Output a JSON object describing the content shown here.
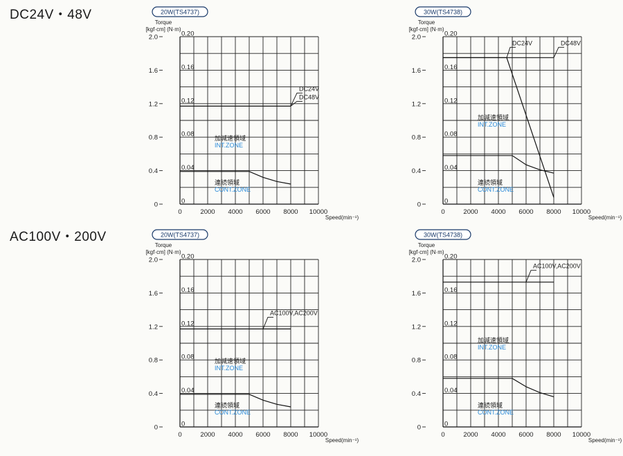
{
  "sections": [
    {
      "title": "DC24V・48V"
    },
    {
      "title": "AC100V・200V"
    }
  ],
  "chart_data": [
    {
      "type": "line",
      "badge": "20W(TS4737)",
      "ylabel": "Torque",
      "ylabel_units": "[kgf·cm] (N·m)",
      "xlabel": "Speed(min⁻¹)",
      "x_ticks": [
        "0",
        "2000",
        "4000",
        "6000",
        "8000",
        "10000"
      ],
      "y_ticks_kgfcm": [
        "0",
        "0.4",
        "0.8",
        "1.2",
        "1.6",
        "2.0"
      ],
      "y_ticks_nm": [
        "0",
        "0.04",
        "0.08",
        "0.12",
        "0.16",
        "0.20"
      ],
      "xlim": [
        0,
        10000
      ],
      "ylim": [
        0,
        0.2
      ],
      "series": [
        {
          "x": [
            0,
            8000
          ],
          "y": [
            0.117,
            0.117
          ]
        },
        {
          "x": [
            0,
            5000,
            6000,
            7000,
            8000
          ],
          "y": [
            0.039,
            0.039,
            0.032,
            0.027,
            0.024
          ]
        }
      ],
      "annotations": [
        {
          "text": "DC24V",
          "x": 8000,
          "y": 0.117
        },
        {
          "text": "DC48V",
          "x": 8000,
          "y": 0.117
        }
      ],
      "zones": {
        "intermittent_jp": "加減速領域",
        "intermittent_en": "INT.ZONE",
        "continuous_jp": "連続領域",
        "continuous_en": "CONT.ZONE"
      }
    },
    {
      "type": "line",
      "badge": "30W(TS4738)",
      "ylabel": "Torque",
      "ylabel_units": "[kgf·cm] (N·m)",
      "xlabel": "Speed(min⁻¹)",
      "x_ticks": [
        "0",
        "2000",
        "4000",
        "6000",
        "8000",
        "10000"
      ],
      "y_ticks_kgfcm": [
        "0",
        "0.4",
        "0.8",
        "1.2",
        "1.6",
        "2.0"
      ],
      "y_ticks_nm": [
        "0",
        "0.04",
        "0.08",
        "0.12",
        "0.16",
        "0.20"
      ],
      "xlim": [
        0,
        10000
      ],
      "ylim": [
        0,
        0.2
      ],
      "series": [
        {
          "x": [
            0,
            4600,
            8000
          ],
          "y": [
            0.175,
            0.175,
            0.008
          ]
        },
        {
          "x": [
            0,
            8000
          ],
          "y": [
            0.175,
            0.175
          ]
        },
        {
          "x": [
            0,
            5000,
            6000,
            7000,
            8000
          ],
          "y": [
            0.058,
            0.058,
            0.047,
            0.041,
            0.037
          ]
        }
      ],
      "annotations": [
        {
          "text": "DC24V",
          "x": 4600,
          "y": 0.175
        },
        {
          "text": "DC48V",
          "x": 8000,
          "y": 0.175
        }
      ],
      "zones": {
        "intermittent_jp": "加減速領域",
        "intermittent_en": "INT.ZONE",
        "continuous_jp": "連続領域",
        "continuous_en": "CONT.ZONE"
      }
    },
    {
      "type": "line",
      "badge": "20W(TS4737)",
      "ylabel": "Torque",
      "ylabel_units": "[kgf·cm] (N·m)",
      "xlabel": "Speed(min⁻¹)",
      "x_ticks": [
        "0",
        "2000",
        "4000",
        "6000",
        "8000",
        "10000"
      ],
      "y_ticks_kgfcm": [
        "0",
        "0.4",
        "0.8",
        "1.2",
        "1.6",
        "2.0"
      ],
      "y_ticks_nm": [
        "0",
        "0.04",
        "0.08",
        "0.12",
        "0.16",
        "0.20"
      ],
      "xlim": [
        0,
        10000
      ],
      "ylim": [
        0,
        0.2
      ],
      "series": [
        {
          "x": [
            0,
            8000
          ],
          "y": [
            0.117,
            0.117
          ]
        },
        {
          "x": [
            0,
            5000,
            6000,
            7000,
            8000
          ],
          "y": [
            0.039,
            0.039,
            0.032,
            0.027,
            0.024
          ]
        }
      ],
      "annotations": [
        {
          "text": "AC100V,AC200V",
          "x": 6000,
          "y": 0.117
        }
      ],
      "zones": {
        "intermittent_jp": "加減速領域",
        "intermittent_en": "INT.ZONE",
        "continuous_jp": "連続領域",
        "continuous_en": "CONT.ZONE"
      }
    },
    {
      "type": "line",
      "badge": "30W(TS4738)",
      "ylabel": "Torque",
      "ylabel_units": "[kgf·cm] (N·m)",
      "xlabel": "Speed(min⁻¹)",
      "x_ticks": [
        "0",
        "2000",
        "4000",
        "6000",
        "8000",
        "10000"
      ],
      "y_ticks_kgfcm": [
        "0",
        "0.4",
        "0.8",
        "1.2",
        "1.6",
        "2.0"
      ],
      "y_ticks_nm": [
        "0",
        "0.04",
        "0.08",
        "0.12",
        "0.16",
        "0.20"
      ],
      "xlim": [
        0,
        10000
      ],
      "ylim": [
        0,
        0.2
      ],
      "series": [
        {
          "x": [
            0,
            8000
          ],
          "y": [
            0.173,
            0.173
          ]
        },
        {
          "x": [
            0,
            5000,
            6000,
            7000,
            8000
          ],
          "y": [
            0.058,
            0.058,
            0.048,
            0.041,
            0.036
          ]
        }
      ],
      "annotations": [
        {
          "text": "AC100V,AC200V",
          "x": 6000,
          "y": 0.173
        }
      ],
      "zones": {
        "intermittent_jp": "加減速領域",
        "intermittent_en": "INT.ZONE",
        "continuous_jp": "連続領域",
        "continuous_en": "CONT.ZONE"
      }
    }
  ]
}
